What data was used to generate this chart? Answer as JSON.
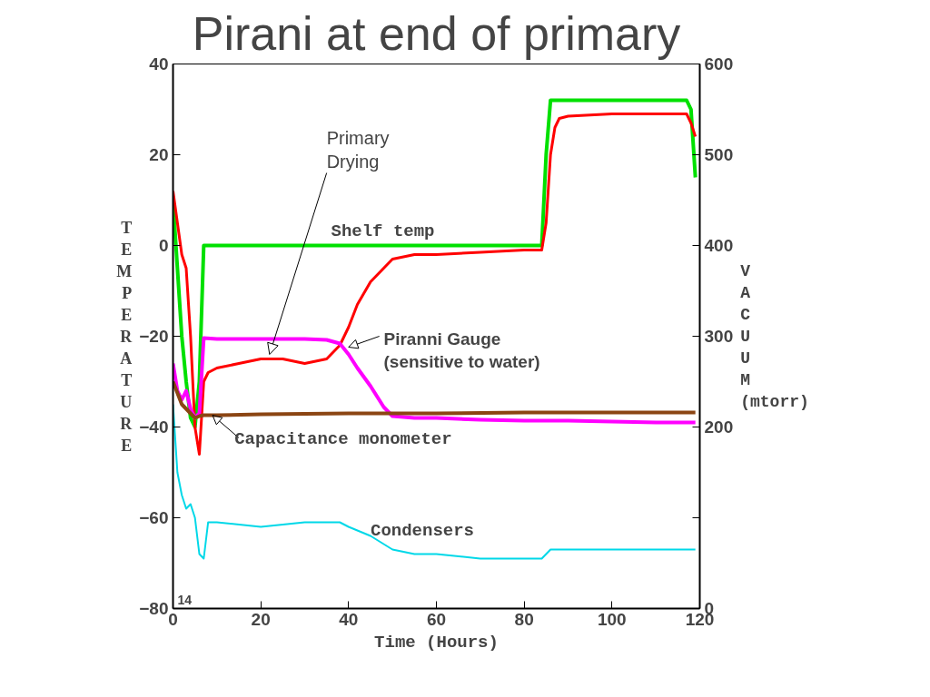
{
  "chart_data": {
    "type": "line",
    "title": "Pirani at end of primary",
    "xlabel": "Time (Hours)",
    "ylabel": "TEMPERATURE",
    "y2label": "VACUUM (mtorr)",
    "xlim": [
      0,
      120
    ],
    "xticks": [
      0,
      20,
      40,
      60,
      80,
      100,
      120
    ],
    "ylim": [
      -80,
      40
    ],
    "yticks": [
      -80,
      -60,
      -40,
      -20,
      0,
      20,
      40
    ],
    "y2lim": [
      0,
      600
    ],
    "y2ticks": [
      0,
      {
        "value": 100,
        "label": null
      },
      200,
      300,
      400,
      500,
      600
    ],
    "grid": false,
    "legend": false,
    "line_style": "solid",
    "marker": "none",
    "series": [
      {
        "name": "Shelf temp",
        "color": "#00e000",
        "x": [
          0,
          1,
          2,
          3,
          4,
          5,
          6,
          7,
          10,
          30,
          50,
          70,
          83,
          84,
          85,
          86,
          100,
          117,
          118,
          119
        ],
        "values": [
          10,
          -5,
          -20,
          -30,
          -38,
          -40,
          -30,
          0,
          0,
          0,
          0,
          0,
          0,
          0,
          20,
          32,
          32,
          32,
          30,
          15
        ]
      },
      {
        "color": "#ff0000",
        "x": [
          0,
          1,
          2,
          3,
          4,
          5,
          6,
          7,
          8,
          10,
          15,
          20,
          25,
          30,
          35,
          38,
          40,
          42,
          45,
          48,
          50,
          55,
          60,
          70,
          80,
          84,
          85,
          86,
          87,
          88,
          90,
          100,
          110,
          117,
          118,
          119
        ],
        "values": [
          12,
          5,
          -2,
          -5,
          -20,
          -40,
          -46,
          -30,
          -28,
          -27,
          -26,
          -25,
          -25,
          -26,
          -25,
          -22,
          -18,
          -13,
          -8,
          -5,
          -3,
          -2,
          -2,
          -1.5,
          -1,
          -1,
          5,
          20,
          26,
          28,
          28.5,
          29,
          29,
          29,
          27,
          24
        ]
      },
      {
        "name": "Piranni Gauge (sensitive to water)",
        "color": "#ff00ff",
        "axis": "y2",
        "x": [
          0,
          1,
          2,
          3,
          4,
          5,
          6,
          7,
          10,
          20,
          30,
          35,
          38,
          40,
          42,
          45,
          48,
          50,
          55,
          60,
          70,
          80,
          90,
          100,
          110,
          119
        ],
        "values": [
          270,
          240,
          230,
          240,
          220,
          210,
          215,
          298,
          297,
          297,
          297,
          296,
          292,
          280,
          265,
          245,
          222,
          212,
          210,
          210,
          208,
          207,
          207,
          206,
          205,
          205
        ]
      },
      {
        "name": "Capacitance monometer",
        "color": "#8b4513",
        "axis": "y2",
        "x": [
          0,
          2,
          4,
          5,
          6,
          7,
          10,
          20,
          40,
          60,
          80,
          100,
          119
        ],
        "values": [
          250,
          225,
          215,
          210,
          212,
          213,
          213,
          214,
          215,
          215,
          216,
          216,
          216
        ]
      },
      {
        "name": "Condensers",
        "color": "#00d8e8",
        "x": [
          0,
          1,
          2,
          3,
          4,
          5,
          6,
          7,
          8,
          10,
          20,
          30,
          38,
          40,
          45,
          50,
          55,
          60,
          70,
          80,
          84,
          86,
          90,
          100,
          110,
          119
        ],
        "values": [
          -35,
          -50,
          -55,
          -58,
          -57,
          -60,
          -68,
          -69,
          -61,
          -61,
          -62,
          -61,
          -61,
          -62,
          -64,
          -67,
          -68,
          -68,
          -69,
          -69,
          -69,
          -67,
          -67,
          -67,
          -67,
          -67
        ]
      }
    ],
    "annotations": [
      {
        "text": "Primary Drying",
        "x": 22,
        "y": -24
      },
      "14"
    ]
  }
}
